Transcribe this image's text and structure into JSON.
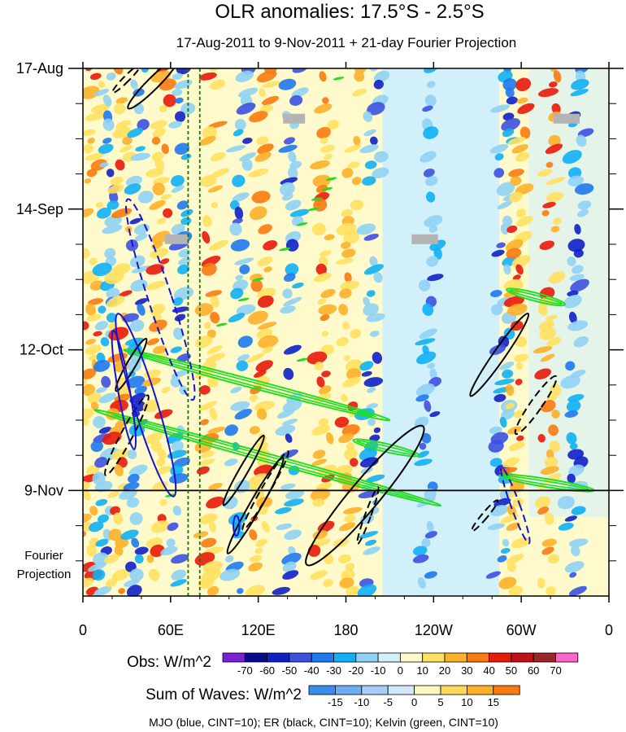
{
  "chart_data": {
    "type": "heatmap",
    "title": "OLR anomalies: 17.5°S - 2.5°S",
    "subtitle": "17-Aug-2011 to 9-Nov-2011 + 21-day Fourier Projection",
    "x_ticks": [
      "0",
      "60E",
      "120E",
      "180",
      "120W",
      "60W",
      "0"
    ],
    "x_tick_values": [
      0,
      60,
      120,
      180,
      240,
      300,
      360
    ],
    "xlim": [
      0,
      360
    ],
    "y_ticks": [
      "17-Aug",
      "14-Sep",
      "12-Oct",
      "9-Nov"
    ],
    "y_tick_days": [
      0,
      28,
      56,
      84
    ],
    "ylim_days": [
      0,
      105
    ],
    "y_reversed": true,
    "projection_label": [
      "Fourier",
      "Projection"
    ],
    "projection_start_day": 84,
    "obs_colorbar": {
      "label": "Obs: W/m^2",
      "levels": [
        "-70",
        "-60",
        "-50",
        "-40",
        "-30",
        "-20",
        "-10",
        "0",
        "10",
        "20",
        "30",
        "40",
        "50",
        "60",
        "70"
      ],
      "colors": [
        "#7b22d6",
        "#0a0a8c",
        "#1020c8",
        "#3c50e0",
        "#1e78f0",
        "#10b0f5",
        "#90d2f5",
        "#d2f0fa",
        "#fffacc",
        "#ffe060",
        "#fdb02a",
        "#f97a10",
        "#e81a0a",
        "#c0101a",
        "#9a2828",
        "#ff66cc"
      ]
    },
    "waves_colorbar": {
      "label": "Sum of Waves: W/m^2",
      "levels": [
        "-15",
        "-10",
        "-5",
        "0",
        "5",
        "10",
        "15"
      ],
      "colors": [
        "#3c8cf0",
        "#6eaef5",
        "#a5cdf8",
        "#d2e8fa",
        "#fff5c0",
        "#ffd75a",
        "#fdb02a",
        "#f97a10"
      ]
    },
    "footnote": "MJO (blue, CINT=10); ER (black, CINT=10); Kelvin (green, CINT=10)",
    "wave_colors": {
      "mjo": "#1414d2",
      "er": "#000000",
      "kelvin": "#22dd22"
    },
    "bands": [
      {
        "lon": 8,
        "sign": 1
      },
      {
        "lon": 18,
        "sign": -1
      },
      {
        "lon": 28,
        "sign": 1
      },
      {
        "lon": 40,
        "sign": -1
      },
      {
        "lon": 55,
        "sign": 1
      },
      {
        "lon": 68,
        "sign": -1
      },
      {
        "lon": 90,
        "sign": 1
      },
      {
        "lon": 110,
        "sign": -1
      },
      {
        "lon": 125,
        "sign": 1
      },
      {
        "lon": 145,
        "sign": -1
      },
      {
        "lon": 168,
        "sign": 1
      },
      {
        "lon": 185,
        "sign": 1
      },
      {
        "lon": 200,
        "sign": -1
      },
      {
        "lon": 240,
        "sign": -1
      },
      {
        "lon": 290,
        "sign": -1
      },
      {
        "lon": 300,
        "sign": 1
      },
      {
        "lon": 322,
        "sign": 1
      },
      {
        "lon": 340,
        "sign": -1
      }
    ],
    "missing_boxes": [
      {
        "lon0": 137,
        "lon1": 152,
        "day": 10
      },
      {
        "lon0": 56,
        "lon1": 72,
        "day": 34
      },
      {
        "lon0": 225,
        "lon1": 243,
        "day": 34
      },
      {
        "lon0": 322,
        "lon1": 340,
        "day": 10
      }
    ],
    "mjo_contours": [
      {
        "lon": 43,
        "day": 67,
        "rx": 8,
        "ry": 19,
        "rot": -17,
        "dash": false
      },
      {
        "lon": 53,
        "day": 46,
        "rx": 8,
        "ry": 21,
        "rot": -18,
        "dash": true
      },
      {
        "lon": 28,
        "day": 64,
        "rx": 4,
        "ry": 12,
        "rot": -10,
        "dash": false
      },
      {
        "lon": 296,
        "day": 87,
        "rx": 3,
        "ry": 8,
        "rot": -20,
        "dash": true
      },
      {
        "lon": 105,
        "day": 91,
        "rx": 2,
        "ry": 2,
        "rot": 0,
        "dash": false
      }
    ],
    "er_contours": [
      {
        "lon": 33,
        "day": 59,
        "rx": 3,
        "ry": 6,
        "rot": 30,
        "dash": false
      },
      {
        "lon": 30,
        "day": 73,
        "rx": 4,
        "ry": 9,
        "rot": 28,
        "dash": true
      },
      {
        "lon": 110,
        "day": 80,
        "rx": 3,
        "ry": 8,
        "rot": 30,
        "dash": false
      },
      {
        "lon": 118,
        "day": 87,
        "rx": 4,
        "ry": 11,
        "rot": 30,
        "dash": false
      },
      {
        "lon": 125,
        "day": 84,
        "rx": 3,
        "ry": 9,
        "rot": 30,
        "dash": true
      },
      {
        "lon": 193,
        "day": 85,
        "rx": 10,
        "ry": 18,
        "rot": 40,
        "dash": false
      },
      {
        "lon": 285,
        "day": 57,
        "rx": 4,
        "ry": 10,
        "rot": 35,
        "dash": false
      },
      {
        "lon": 310,
        "day": 67,
        "rx": 4,
        "ry": 7,
        "rot": 35,
        "dash": true
      },
      {
        "lon": 275,
        "day": 89,
        "rx": 2,
        "ry": 4,
        "rot": 40,
        "dash": true
      },
      {
        "lon": 48,
        "day": 3,
        "rx": 4,
        "ry": 7,
        "rot": 45,
        "dash": false
      },
      {
        "lon": 30,
        "day": 2,
        "rx": 2,
        "ry": 4,
        "rot": 45,
        "dash": true
      },
      {
        "lon": 195,
        "day": 89,
        "rx": 2,
        "ry": 6,
        "rot": 20,
        "dash": true
      }
    ],
    "kelvin_bands": [
      {
        "lon0": 8,
        "day0": 68,
        "lon1": 245,
        "day1": 87
      },
      {
        "lon0": 28,
        "day0": 56,
        "lon1": 210,
        "day1": 70
      },
      {
        "lon0": 285,
        "day0": 81,
        "lon1": 350,
        "day1": 84
      },
      {
        "lon0": 290,
        "day0": 44,
        "lon1": 330,
        "day1": 47
      },
      {
        "lon0": 185,
        "day0": 74,
        "lon1": 230,
        "day1": 77
      }
    ],
    "kelvin_dashes": [
      {
        "lon": 160,
        "day": 26
      },
      {
        "lon": 158,
        "day": 28
      },
      {
        "lon": 150,
        "day": 31
      },
      {
        "lon": 138,
        "day": 36
      },
      {
        "lon": 120,
        "day": 42
      },
      {
        "lon": 110,
        "day": 46
      },
      {
        "lon": 95,
        "day": 51
      },
      {
        "lon": 150,
        "day": 58
      },
      {
        "lon": 167,
        "day": 24
      },
      {
        "lon": 175,
        "day": 2
      },
      {
        "lon": 170,
        "day": 22
      },
      {
        "lon": 60,
        "day": 85
      }
    ]
  }
}
